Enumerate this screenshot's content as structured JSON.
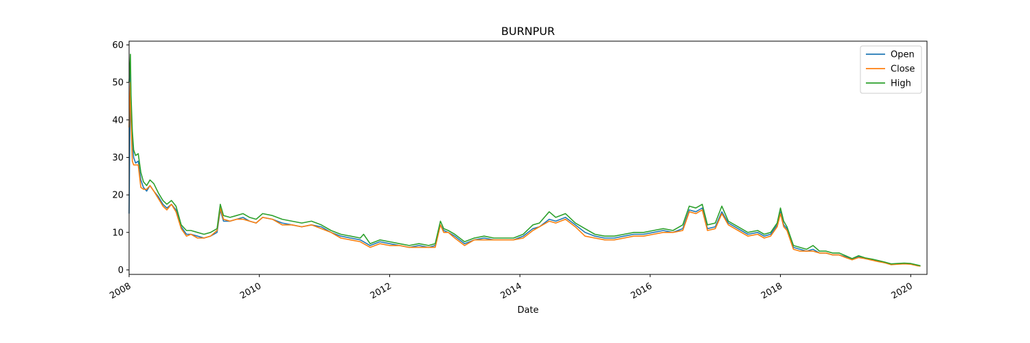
{
  "chart_data": {
    "type": "line",
    "title": "BURNPUR",
    "xlabel": "Date",
    "ylabel": "",
    "xlim": [
      2008.0,
      2020.25
    ],
    "ylim": [
      -1.2,
      61.0
    ],
    "xticks": [
      2008,
      2010,
      2012,
      2014,
      2016,
      2018,
      2020
    ],
    "xtick_labels": [
      "2008",
      "2010",
      "2012",
      "2014",
      "2016",
      "2018",
      "2020"
    ],
    "yticks": [
      0,
      10,
      20,
      30,
      40,
      50,
      60
    ],
    "ytick_labels": [
      "0",
      "10",
      "20",
      "30",
      "40",
      "50",
      "60"
    ],
    "legend": "top-right",
    "grid": false,
    "x": [
      2008.0,
      2008.02,
      2008.03,
      2008.05,
      2008.07,
      2008.1,
      2008.14,
      2008.18,
      2008.22,
      2008.27,
      2008.32,
      2008.38,
      2008.45,
      2008.52,
      2008.58,
      2008.65,
      2008.72,
      2008.8,
      2008.88,
      2008.95,
      2009.05,
      2009.15,
      2009.25,
      2009.35,
      2009.4,
      2009.45,
      2009.55,
      2009.65,
      2009.75,
      2009.85,
      2009.95,
      2010.05,
      2010.2,
      2010.35,
      2010.5,
      2010.65,
      2010.8,
      2010.95,
      2011.1,
      2011.25,
      2011.4,
      2011.55,
      2011.6,
      2011.7,
      2011.85,
      2012.0,
      2012.15,
      2012.3,
      2012.45,
      2012.6,
      2012.7,
      2012.78,
      2012.83,
      2012.9,
      2013.0,
      2013.15,
      2013.3,
      2013.45,
      2013.6,
      2013.75,
      2013.9,
      2014.05,
      2014.2,
      2014.3,
      2014.45,
      2014.55,
      2014.7,
      2014.85,
      2015.0,
      2015.15,
      2015.3,
      2015.45,
      2015.6,
      2015.75,
      2015.9,
      2016.05,
      2016.2,
      2016.35,
      2016.5,
      2016.6,
      2016.7,
      2016.8,
      2016.88,
      2017.0,
      2017.1,
      2017.2,
      2017.35,
      2017.5,
      2017.65,
      2017.75,
      2017.85,
      2017.95,
      2018.0,
      2018.05,
      2018.1,
      2018.2,
      2018.3,
      2018.4,
      2018.5,
      2018.6,
      2018.7,
      2018.8,
      2018.9,
      2019.0,
      2019.1,
      2019.2,
      2019.3,
      2019.4,
      2019.5,
      2019.6,
      2019.7,
      2019.8,
      2019.9,
      2020.0,
      2020.1,
      2020.15
    ],
    "series": [
      {
        "name": "Open",
        "color": "#1f77b4",
        "values": [
          15.0,
          54.0,
          42.0,
          35.0,
          30.0,
          28.5,
          29.0,
          24.0,
          22.0,
          21.0,
          22.5,
          21.0,
          19.5,
          17.5,
          16.5,
          17.5,
          16.0,
          11.5,
          9.5,
          9.5,
          9.0,
          8.5,
          9.0,
          10.0,
          16.0,
          13.0,
          13.0,
          13.5,
          14.0,
          13.0,
          12.5,
          14.0,
          13.5,
          12.5,
          12.0,
          11.5,
          12.0,
          11.5,
          10.0,
          9.0,
          8.5,
          8.0,
          7.5,
          6.5,
          7.5,
          7.0,
          6.5,
          6.0,
          6.5,
          6.0,
          6.5,
          12.0,
          10.5,
          10.0,
          9.0,
          7.0,
          8.0,
          8.5,
          8.0,
          8.0,
          8.0,
          9.0,
          11.0,
          11.5,
          13.5,
          13.0,
          14.0,
          12.0,
          10.0,
          9.0,
          8.5,
          8.5,
          9.0,
          9.5,
          9.5,
          10.0,
          10.5,
          10.0,
          11.0,
          16.0,
          15.5,
          16.5,
          11.0,
          11.5,
          15.5,
          12.5,
          11.0,
          9.5,
          10.0,
          9.0,
          9.5,
          12.0,
          15.5,
          12.0,
          11.0,
          6.0,
          5.5,
          5.0,
          5.5,
          4.5,
          4.5,
          4.0,
          4.0,
          3.5,
          2.8,
          3.5,
          3.0,
          2.7,
          2.3,
          2.0,
          1.5,
          1.6,
          1.7,
          1.6,
          1.2,
          1.0
        ]
      },
      {
        "name": "Close",
        "color": "#ff7f0e",
        "values": [
          38.0,
          50.0,
          40.0,
          29.0,
          28.0,
          28.0,
          28.0,
          22.0,
          21.5,
          21.5,
          22.5,
          21.0,
          19.0,
          17.0,
          16.0,
          17.5,
          15.5,
          11.0,
          9.0,
          9.5,
          8.5,
          8.5,
          9.0,
          10.5,
          16.5,
          13.5,
          13.0,
          13.5,
          13.5,
          13.0,
          12.5,
          14.0,
          13.5,
          12.0,
          12.0,
          11.5,
          12.0,
          11.0,
          10.0,
          8.5,
          8.0,
          7.5,
          7.0,
          6.0,
          7.0,
          6.5,
          6.5,
          6.0,
          6.0,
          6.0,
          6.0,
          12.0,
          10.0,
          10.0,
          8.5,
          6.5,
          8.0,
          8.0,
          8.0,
          8.0,
          8.0,
          8.5,
          10.5,
          11.5,
          13.0,
          12.5,
          13.5,
          11.5,
          9.0,
          8.5,
          8.0,
          8.0,
          8.5,
          9.0,
          9.0,
          9.5,
          10.0,
          10.0,
          10.5,
          15.5,
          15.0,
          16.0,
          10.5,
          11.0,
          15.0,
          12.0,
          10.5,
          9.0,
          9.5,
          8.5,
          9.0,
          11.5,
          15.0,
          11.5,
          10.5,
          5.5,
          5.0,
          5.0,
          5.0,
          4.5,
          4.5,
          4.0,
          4.0,
          3.3,
          2.7,
          3.3,
          3.0,
          2.6,
          2.2,
          1.9,
          1.4,
          1.5,
          1.6,
          1.5,
          1.1,
          1.0
        ]
      },
      {
        "name": "High",
        "color": "#2ca02c",
        "values": [
          50.0,
          57.5,
          46.5,
          37.0,
          32.0,
          30.5,
          31.0,
          26.0,
          23.5,
          22.5,
          24.0,
          23.0,
          20.5,
          18.5,
          17.5,
          18.5,
          17.0,
          12.0,
          10.5,
          10.5,
          10.0,
          9.5,
          10.0,
          11.0,
          17.5,
          14.5,
          14.0,
          14.5,
          15.0,
          14.0,
          13.5,
          15.0,
          14.5,
          13.5,
          13.0,
          12.5,
          13.0,
          12.0,
          10.5,
          9.5,
          9.0,
          8.5,
          9.5,
          7.0,
          8.0,
          7.5,
          7.0,
          6.5,
          7.0,
          6.5,
          7.0,
          13.0,
          11.0,
          10.5,
          9.5,
          7.5,
          8.5,
          9.0,
          8.5,
          8.5,
          8.5,
          9.5,
          12.0,
          12.5,
          15.5,
          14.0,
          15.0,
          12.5,
          11.0,
          9.5,
          9.0,
          9.0,
          9.5,
          10.0,
          10.0,
          10.5,
          11.0,
          10.5,
          12.0,
          17.0,
          16.5,
          17.5,
          12.0,
          12.5,
          17.0,
          13.0,
          11.5,
          10.0,
          10.5,
          9.5,
          10.0,
          12.5,
          16.5,
          13.0,
          11.5,
          6.5,
          6.0,
          5.5,
          6.5,
          5.0,
          5.0,
          4.5,
          4.5,
          3.8,
          3.0,
          3.8,
          3.2,
          2.9,
          2.5,
          2.1,
          1.6,
          1.7,
          1.8,
          1.7,
          1.3,
          1.1
        ]
      }
    ]
  }
}
